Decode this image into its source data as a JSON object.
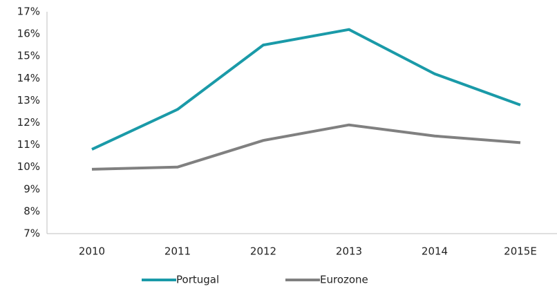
{
  "chart_data": {
    "type": "line",
    "categories": [
      "2010",
      "2011",
      "2012",
      "2013",
      "2014",
      "2015E"
    ],
    "series": [
      {
        "name": "Portugal",
        "color": "#1a9aa8",
        "values": [
          10.8,
          12.6,
          15.5,
          16.2,
          14.2,
          12.8
        ]
      },
      {
        "name": "Eurozone",
        "color": "#808080",
        "values": [
          9.9,
          10.0,
          11.2,
          11.9,
          11.4,
          11.1
        ]
      }
    ],
    "ylim": [
      7,
      17
    ],
    "yticks": [
      {
        "value": 7,
        "label": "7%"
      },
      {
        "value": 8,
        "label": "8%"
      },
      {
        "value": 9,
        "label": "9%"
      },
      {
        "value": 10,
        "label": "10%"
      },
      {
        "value": 11,
        "label": "11%"
      },
      {
        "value": 12,
        "label": "12%"
      },
      {
        "value": 13,
        "label": "13%"
      },
      {
        "value": 14,
        "label": "14%"
      },
      {
        "value": 15,
        "label": "15%"
      },
      {
        "value": 16,
        "label": "16%"
      },
      {
        "value": 17,
        "label": "17%"
      }
    ],
    "grid": false,
    "legend": "bottom"
  }
}
